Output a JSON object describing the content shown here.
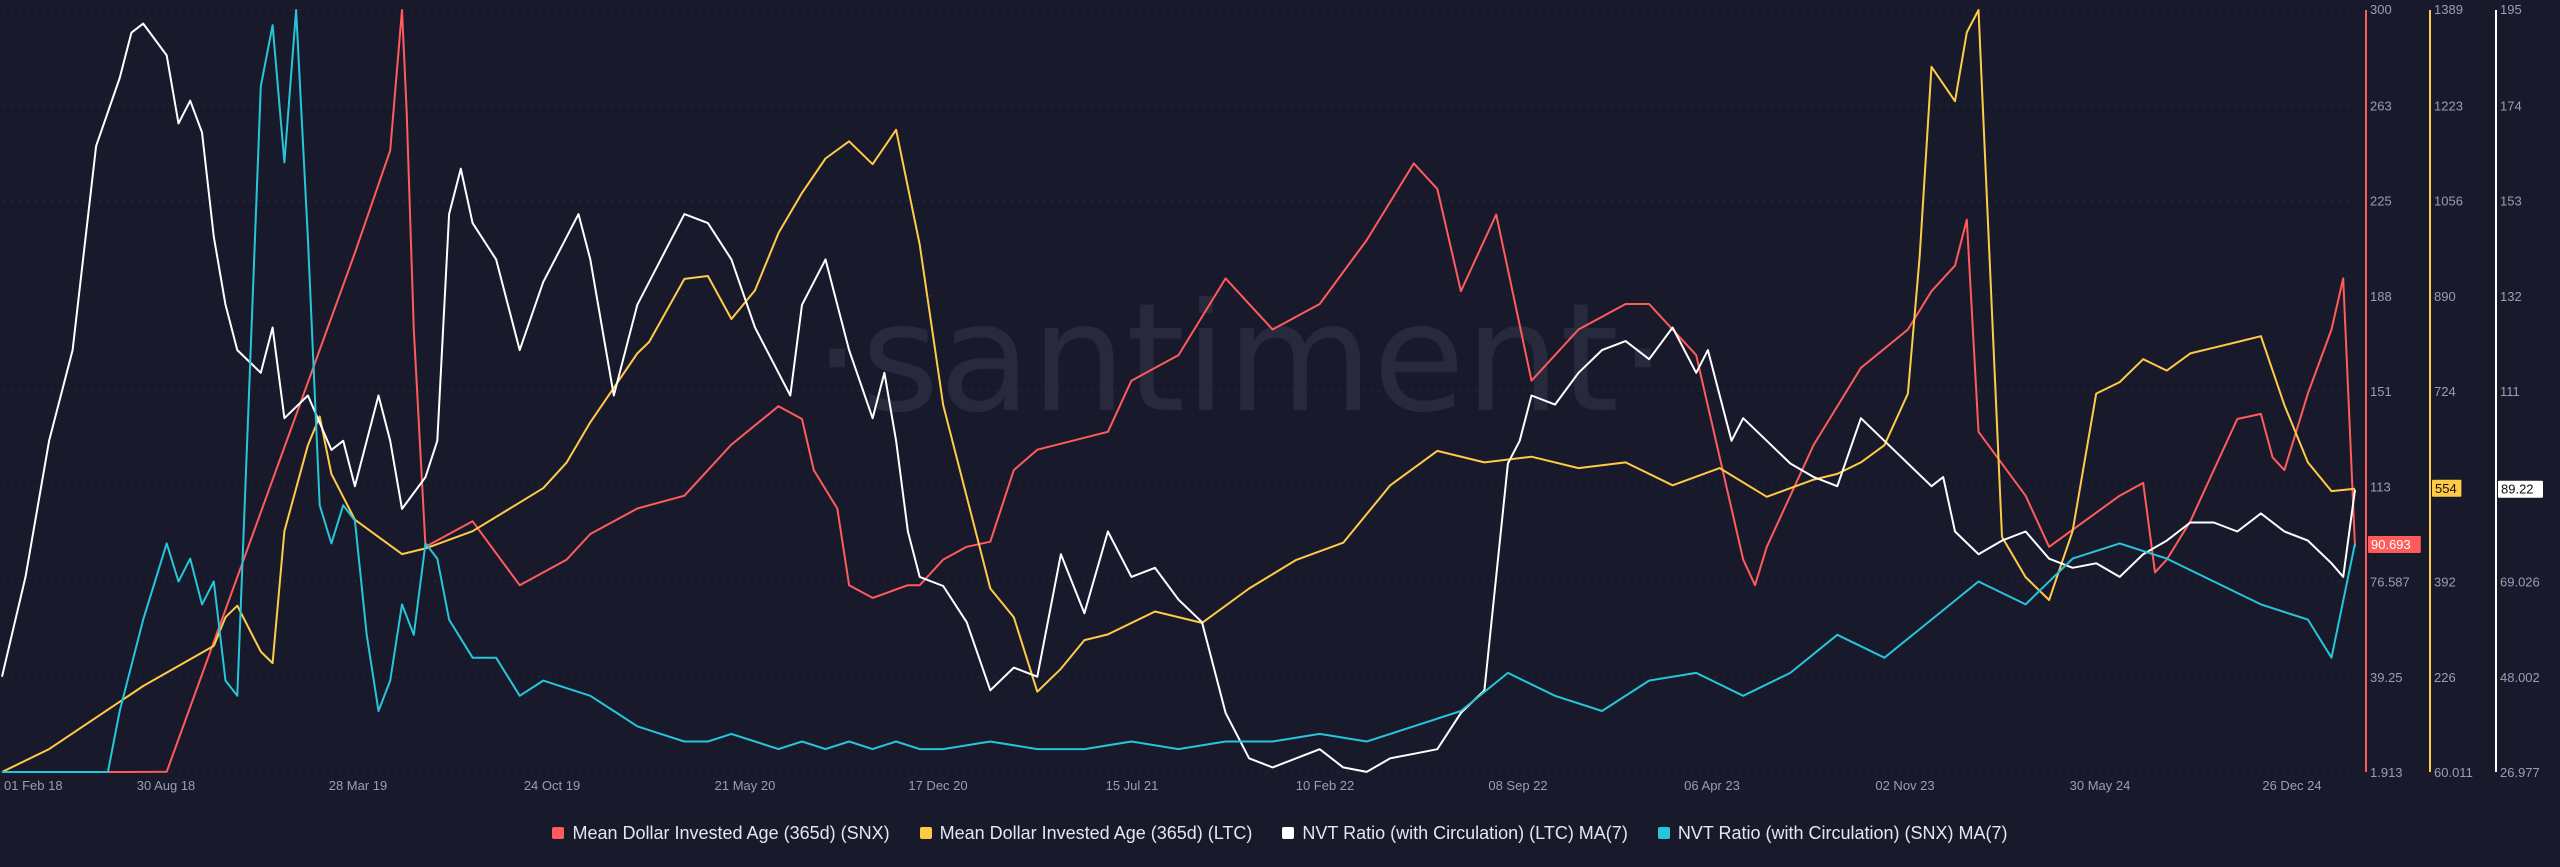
{
  "watermark": "·santiment·",
  "chart_data": {
    "type": "line",
    "x_ticks": [
      "01 Feb 18",
      "30 Aug 18",
      "28 Mar 19",
      "24 Oct 19",
      "21 May 20",
      "17 Dec 20",
      "15 Jul 21",
      "10 Feb 22",
      "08 Sep 22",
      "06 Apr 23",
      "02 Nov 23",
      "30 May 24",
      "26 Dec 24"
    ],
    "axes": [
      {
        "id": "snx_mdia",
        "color": "#ff5b5b",
        "range": [
          1.913,
          300
        ],
        "ticks": [
          "300",
          "263",
          "225",
          "188",
          "151",
          "113",
          "76.587",
          "39.25",
          "1.913"
        ],
        "current": "90.693"
      },
      {
        "id": "ltc_mdia",
        "color": "#ffcb47",
        "range": [
          60.011,
          1389
        ],
        "ticks": [
          "1389",
          "1223",
          "1056",
          "890",
          "724",
          "554",
          "392",
          "226",
          "60.011"
        ],
        "current": "554"
      },
      {
        "id": "nvt_ltc",
        "color": "#ffffff",
        "range": [
          26.977,
          195
        ],
        "ticks": [
          "195",
          "174",
          "153",
          "132",
          "111",
          "89.22",
          "69.026",
          "48.002",
          "26.977"
        ],
        "current": "89.22"
      },
      {
        "id": "nvt_snx",
        "color": "#26c6da",
        "range": [
          0,
          100
        ]
      }
    ],
    "series": [
      {
        "name": "Mean Dollar Invested Age (365d) (SNX)",
        "axis": "snx_mdia",
        "color": "#ff5b5b",
        "x": [
          0,
          0.05,
          0.07,
          0.15,
          0.165,
          0.17,
          0.172,
          0.175,
          0.18,
          0.2,
          0.22,
          0.24,
          0.25,
          0.27,
          0.29,
          0.31,
          0.33,
          0.34,
          0.345,
          0.355,
          0.36,
          0.37,
          0.385,
          0.39,
          0.4,
          0.41,
          0.42,
          0.43,
          0.44,
          0.47,
          0.48,
          0.5,
          0.52,
          0.54,
          0.56,
          0.58,
          0.6,
          0.61,
          0.62,
          0.635,
          0.65,
          0.67,
          0.69,
          0.7,
          0.72,
          0.74,
          0.745,
          0.75,
          0.77,
          0.79,
          0.81,
          0.82,
          0.83,
          0.835,
          0.84,
          0.86,
          0.87,
          0.9,
          0.91,
          0.915,
          0.92,
          0.93,
          0.94,
          0.95,
          0.96,
          0.965,
          0.97,
          0.98,
          0.99,
          0.995,
          1.0
        ],
        "values": [
          1.9,
          1.9,
          2,
          205,
          245,
          300,
          260,
          175,
          90,
          100,
          75,
          85,
          95,
          105,
          110,
          130,
          145,
          140,
          120,
          105,
          75,
          70,
          75,
          75,
          85,
          90,
          92,
          120,
          128,
          135,
          155,
          165,
          195,
          175,
          185,
          210,
          240,
          230,
          190,
          220,
          155,
          175,
          185,
          185,
          165,
          85,
          75,
          90,
          130,
          160,
          175,
          190,
          200,
          218,
          135,
          110,
          90,
          110,
          115,
          80,
          85,
          100,
          120,
          140,
          142,
          125,
          120,
          150,
          175,
          195,
          90
        ]
      },
      {
        "name": "Mean Dollar Invested Age (365d) (LTC)",
        "axis": "ltc_mdia",
        "color": "#ffcb47",
        "x": [
          0,
          0.02,
          0.06,
          0.09,
          0.095,
          0.1,
          0.11,
          0.115,
          0.12,
          0.13,
          0.135,
          0.14,
          0.15,
          0.17,
          0.18,
          0.2,
          0.23,
          0.24,
          0.25,
          0.27,
          0.275,
          0.29,
          0.3,
          0.31,
          0.32,
          0.33,
          0.34,
          0.35,
          0.36,
          0.37,
          0.38,
          0.39,
          0.4,
          0.42,
          0.43,
          0.44,
          0.45,
          0.46,
          0.47,
          0.49,
          0.51,
          0.53,
          0.55,
          0.57,
          0.59,
          0.61,
          0.63,
          0.65,
          0.67,
          0.69,
          0.71,
          0.73,
          0.75,
          0.77,
          0.78,
          0.79,
          0.8,
          0.81,
          0.815,
          0.82,
          0.83,
          0.835,
          0.84,
          0.85,
          0.86,
          0.87,
          0.88,
          0.89,
          0.9,
          0.91,
          0.92,
          0.93,
          0.94,
          0.95,
          0.96,
          0.97,
          0.98,
          0.99,
          1.0
        ],
        "values": [
          60,
          100,
          210,
          280,
          330,
          350,
          270,
          250,
          480,
          630,
          680,
          580,
          500,
          440,
          450,
          480,
          555,
          600,
          670,
          790,
          810,
          920,
          925,
          850,
          900,
          1000,
          1070,
          1130,
          1160,
          1120,
          1180,
          980,
          700,
          380,
          330,
          200,
          240,
          290,
          300,
          340,
          320,
          380,
          430,
          460,
          560,
          620,
          600,
          610,
          590,
          600,
          560,
          590,
          540,
          570,
          580,
          600,
          630,
          720,
          960,
          1290,
          1230,
          1350,
          1389,
          470,
          400,
          360,
          480,
          720,
          740,
          780,
          760,
          790,
          800,
          810,
          820,
          700,
          600,
          550,
          554
        ]
      },
      {
        "name": "NVT Ratio (with Circulation) (LTC) MA(7)",
        "axis": "nvt_ltc",
        "color": "#ffffff",
        "x": [
          0,
          0.01,
          0.02,
          0.03,
          0.04,
          0.05,
          0.055,
          0.06,
          0.07,
          0.075,
          0.08,
          0.085,
          0.09,
          0.095,
          0.1,
          0.11,
          0.115,
          0.12,
          0.13,
          0.14,
          0.145,
          0.15,
          0.16,
          0.165,
          0.17,
          0.18,
          0.185,
          0.19,
          0.195,
          0.2,
          0.21,
          0.22,
          0.23,
          0.24,
          0.245,
          0.25,
          0.26,
          0.27,
          0.28,
          0.29,
          0.3,
          0.31,
          0.32,
          0.33,
          0.335,
          0.34,
          0.35,
          0.36,
          0.37,
          0.375,
          0.38,
          0.385,
          0.39,
          0.4,
          0.41,
          0.42,
          0.43,
          0.44,
          0.45,
          0.46,
          0.47,
          0.48,
          0.49,
          0.5,
          0.51,
          0.52,
          0.53,
          0.54,
          0.55,
          0.56,
          0.57,
          0.58,
          0.59,
          0.6,
          0.61,
          0.62,
          0.63,
          0.64,
          0.645,
          0.65,
          0.66,
          0.67,
          0.68,
          0.69,
          0.7,
          0.71,
          0.72,
          0.725,
          0.73,
          0.735,
          0.74,
          0.75,
          0.76,
          0.77,
          0.78,
          0.79,
          0.8,
          0.81,
          0.82,
          0.825,
          0.83,
          0.84,
          0.85,
          0.86,
          0.87,
          0.88,
          0.89,
          0.9,
          0.91,
          0.92,
          0.93,
          0.94,
          0.95,
          0.96,
          0.97,
          0.98,
          0.99,
          0.995,
          1.0
        ],
        "values": [
          48,
          70,
          100,
          120,
          165,
          180,
          190,
          192,
          185,
          170,
          175,
          168,
          145,
          130,
          120,
          115,
          125,
          105,
          110,
          98,
          100,
          90,
          110,
          100,
          85,
          92,
          100,
          150,
          160,
          148,
          140,
          120,
          135,
          145,
          150,
          140,
          110,
          130,
          140,
          150,
          148,
          140,
          125,
          115,
          110,
          130,
          140,
          120,
          105,
          115,
          100,
          80,
          70,
          68,
          60,
          45,
          50,
          48,
          75,
          62,
          80,
          70,
          72,
          65,
          60,
          40,
          30,
          28,
          30,
          32,
          28,
          27,
          30,
          31,
          32,
          40,
          45,
          95,
          100,
          110,
          108,
          115,
          120,
          122,
          118,
          125,
          115,
          120,
          110,
          100,
          105,
          100,
          95,
          92,
          90,
          105,
          100,
          95,
          90,
          92,
          80,
          75,
          78,
          80,
          74,
          72,
          73,
          70,
          75,
          78,
          82,
          82,
          80,
          84,
          80,
          78,
          73,
          70,
          89.22
        ]
      },
      {
        "name": "NVT Ratio (with Circulation) (SNX) MA(7)",
        "axis": "nvt_snx",
        "color": "#26c6da",
        "x": [
          0,
          0.045,
          0.05,
          0.06,
          0.07,
          0.075,
          0.08,
          0.085,
          0.09,
          0.095,
          0.1,
          0.105,
          0.11,
          0.115,
          0.12,
          0.125,
          0.13,
          0.135,
          0.14,
          0.145,
          0.15,
          0.155,
          0.16,
          0.165,
          0.17,
          0.175,
          0.18,
          0.185,
          0.19,
          0.2,
          0.21,
          0.22,
          0.23,
          0.24,
          0.25,
          0.26,
          0.27,
          0.28,
          0.29,
          0.3,
          0.31,
          0.32,
          0.33,
          0.34,
          0.35,
          0.36,
          0.37,
          0.38,
          0.39,
          0.4,
          0.42,
          0.44,
          0.46,
          0.48,
          0.5,
          0.52,
          0.54,
          0.56,
          0.58,
          0.6,
          0.62,
          0.64,
          0.66,
          0.68,
          0.7,
          0.72,
          0.74,
          0.76,
          0.78,
          0.8,
          0.82,
          0.84,
          0.86,
          0.88,
          0.9,
          0.92,
          0.94,
          0.96,
          0.98,
          0.99,
          1.0
        ],
        "values": [
          0,
          0,
          8,
          20,
          30,
          25,
          28,
          22,
          25,
          12,
          10,
          50,
          90,
          98,
          80,
          100,
          70,
          35,
          30,
          35,
          33,
          18,
          8,
          12,
          22,
          18,
          30,
          28,
          20,
          15,
          15,
          10,
          12,
          11,
          10,
          8,
          6,
          5,
          4,
          4,
          5,
          4,
          3,
          4,
          3,
          4,
          3,
          4,
          3,
          3,
          4,
          3,
          3,
          4,
          3,
          4,
          4,
          5,
          4,
          6,
          8,
          13,
          10,
          8,
          12,
          13,
          10,
          13,
          18,
          15,
          20,
          25,
          22,
          28,
          30,
          28,
          25,
          22,
          20,
          15,
          30
        ]
      }
    ]
  },
  "legend": [
    {
      "label": "Mean Dollar Invested Age (365d) (SNX)",
      "color": "#ff5b5b"
    },
    {
      "label": "Mean Dollar Invested Age (365d) (LTC)",
      "color": "#ffcb47"
    },
    {
      "label": "NVT Ratio (with Circulation) (LTC) MA(7)",
      "color": "#ffffff"
    },
    {
      "label": "NVT Ratio (with Circulation) (SNX) MA(7)",
      "color": "#26c6da"
    }
  ]
}
